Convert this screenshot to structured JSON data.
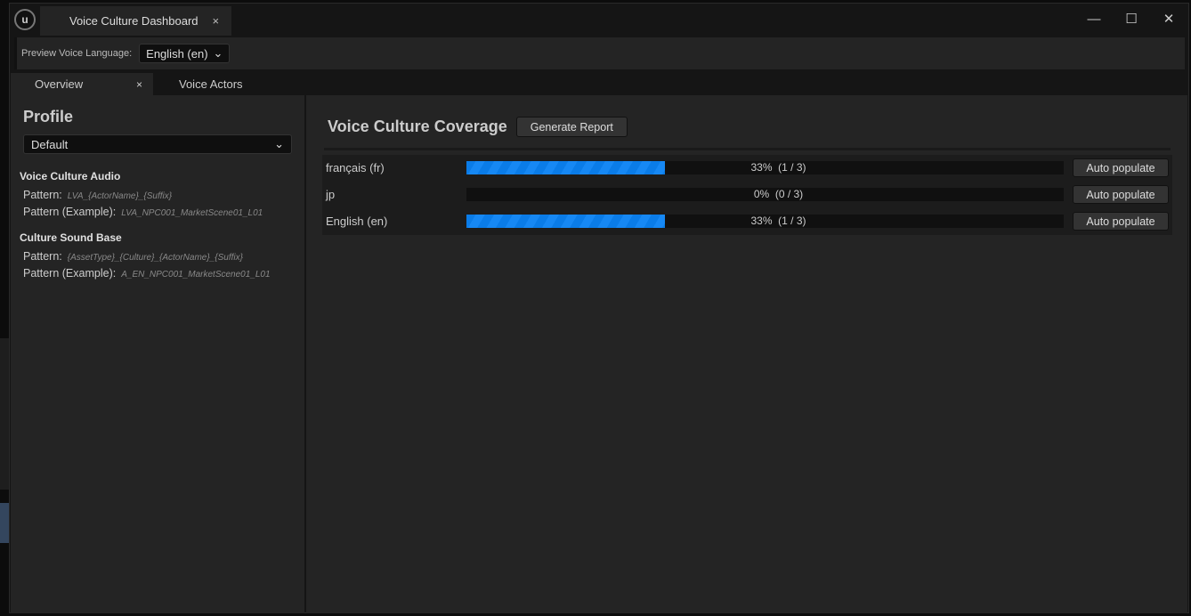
{
  "window": {
    "tab_title": "Voice Culture Dashboard",
    "close_glyph": "×",
    "controls": {
      "minimize": "—",
      "maximize": "☐",
      "close": "✕"
    }
  },
  "toolbar": {
    "preview_label": "Preview Voice Language:",
    "preview_value": "English (en)"
  },
  "tabs": [
    {
      "label": "Overview",
      "active": true
    },
    {
      "label": "Voice Actors",
      "active": false
    }
  ],
  "profile": {
    "title": "Profile",
    "selected": "Default",
    "sections": [
      {
        "title": "Voice Culture Audio",
        "pattern_label": "Pattern:",
        "pattern": "LVA_{ActorName}_{Suffix}",
        "example_label": "Pattern (Example):",
        "example": "LVA_NPC001_MarketScene01_L01"
      },
      {
        "title": "Culture Sound Base",
        "pattern_label": "Pattern:",
        "pattern": "{AssetType}_{Culture}_{ActorName}_{Suffix}",
        "example_label": "Pattern (Example):",
        "example": "A_EN_NPC001_MarketScene01_L01"
      }
    ]
  },
  "coverage": {
    "title": "Voice Culture Coverage",
    "generate_label": "Generate Report",
    "progress_color": "#0a7ce8",
    "rows": [
      {
        "name": "français (fr)",
        "fraction": 0.333,
        "text": "33%  (1 / 3)",
        "button": "Auto populate"
      },
      {
        "name": "jp",
        "fraction": 0,
        "text": "0%  (0 / 3)",
        "button": "Auto populate"
      },
      {
        "name": "English (en)",
        "fraction": 0.333,
        "text": "33%  (1 / 3)",
        "button": "Auto populate"
      }
    ]
  }
}
